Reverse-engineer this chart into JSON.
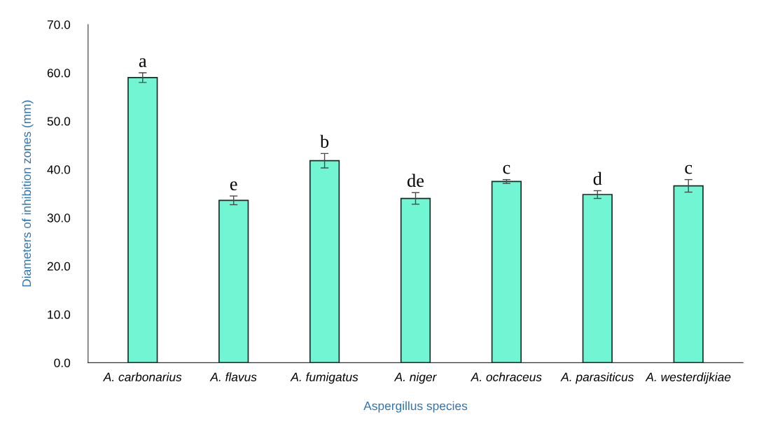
{
  "chart_data": {
    "type": "bar",
    "xlabel": "Aspergillus species",
    "ylabel": "Diameters of inhibition zones (mm)",
    "categories": [
      "A. carbonarius",
      "A. flavus",
      "A. fumigatus",
      "A. niger",
      "A. ochraceus",
      "A. parasiticus",
      "A. westerdijkiae"
    ],
    "values": [
      59.0,
      33.6,
      41.8,
      34.0,
      37.5,
      34.8,
      36.6
    ],
    "errors": [
      1.0,
      0.9,
      1.5,
      1.2,
      0.4,
      0.8,
      1.3
    ],
    "color": "#72f5d3",
    "ylim": [
      0,
      70
    ],
    "yticks": [
      {
        "value": 0,
        "label": "0.0"
      },
      {
        "value": 10,
        "label": "10.0"
      },
      {
        "value": 20,
        "label": "20.0"
      },
      {
        "value": 30,
        "label": "30.0"
      },
      {
        "value": 40,
        "label": "40.0"
      },
      {
        "value": 50,
        "label": "50.0"
      },
      {
        "value": 60,
        "label": "60.0"
      },
      {
        "value": 70,
        "label": "70.0"
      }
    ],
    "grid": false,
    "legend": false,
    "annotations": [
      {
        "text": "a",
        "x": "A. carbonarius",
        "y": 60.0
      },
      {
        "text": "e",
        "x": "A. flavus",
        "y": 34.5
      },
      {
        "text": "b",
        "x": "A. fumigatus",
        "y": 43.3
      },
      {
        "text": "de",
        "x": "A. niger",
        "y": 35.2
      },
      {
        "text": "c",
        "x": "A. ochraceus",
        "y": 37.9
      },
      {
        "text": "d",
        "x": "A. parasiticus",
        "y": 35.6
      },
      {
        "text": "c",
        "x": "A. westerdijkiae",
        "y": 37.9
      }
    ]
  }
}
